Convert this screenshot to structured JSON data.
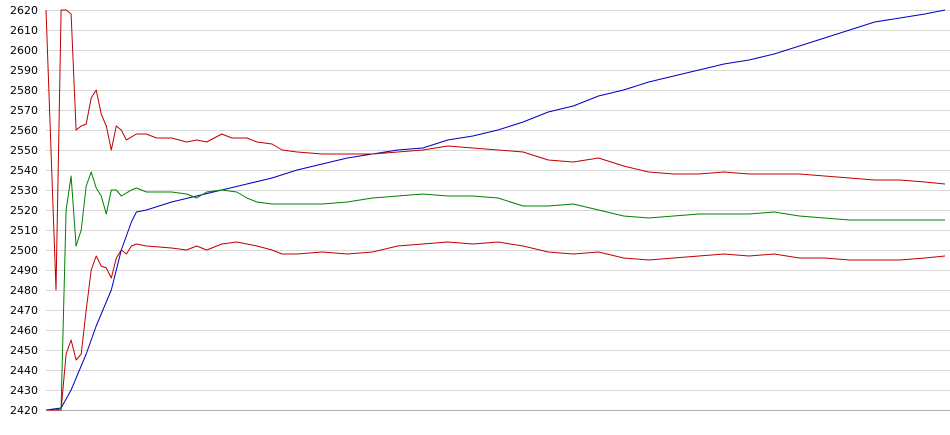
{
  "chart_data": {
    "type": "line",
    "title": "",
    "xlabel": "",
    "ylabel": "",
    "ylim": [
      2420,
      2620
    ],
    "xlim": [
      0,
      179
    ],
    "yticks": [
      2420,
      2430,
      2440,
      2450,
      2460,
      2470,
      2480,
      2490,
      2500,
      2510,
      2520,
      2530,
      2540,
      2550,
      2560,
      2570,
      2580,
      2590,
      2600,
      2610,
      2620
    ],
    "grid": true,
    "legend": "none",
    "series": [
      {
        "color": "#0000c0",
        "points": [
          [
            0,
            2420
          ],
          [
            3,
            2421
          ],
          [
            5,
            2430
          ],
          [
            8,
            2448
          ],
          [
            10,
            2462
          ],
          [
            13,
            2480
          ],
          [
            15,
            2500
          ],
          [
            17,
            2514
          ],
          [
            18,
            2519
          ],
          [
            20,
            2520
          ],
          [
            25,
            2524
          ],
          [
            30,
            2527
          ],
          [
            35,
            2530
          ],
          [
            40,
            2533
          ],
          [
            45,
            2536
          ],
          [
            50,
            2540
          ],
          [
            55,
            2543
          ],
          [
            60,
            2546
          ],
          [
            65,
            2548
          ],
          [
            70,
            2550
          ],
          [
            75,
            2551
          ],
          [
            80,
            2555
          ],
          [
            85,
            2557
          ],
          [
            90,
            2560
          ],
          [
            95,
            2564
          ],
          [
            100,
            2569
          ],
          [
            105,
            2572
          ],
          [
            110,
            2577
          ],
          [
            115,
            2580
          ],
          [
            120,
            2584
          ],
          [
            125,
            2587
          ],
          [
            130,
            2590
          ],
          [
            135,
            2593
          ],
          [
            140,
            2595
          ],
          [
            145,
            2598
          ],
          [
            150,
            2602
          ],
          [
            155,
            2606
          ],
          [
            160,
            2610
          ],
          [
            165,
            2614
          ],
          [
            170,
            2616
          ],
          [
            175,
            2618
          ],
          [
            179,
            2620
          ]
        ]
      },
      {
        "color": "#c00000",
        "points": [
          [
            0,
            2620
          ],
          [
            1,
            2550
          ],
          [
            2,
            2480
          ],
          [
            3,
            2620
          ],
          [
            4,
            2620
          ],
          [
            5,
            2618
          ],
          [
            6,
            2560
          ],
          [
            7,
            2562
          ],
          [
            8,
            2563
          ],
          [
            9,
            2576
          ],
          [
            10,
            2580
          ],
          [
            11,
            2568
          ],
          [
            12,
            2562
          ],
          [
            13,
            2550
          ],
          [
            14,
            2562
          ],
          [
            15,
            2560
          ],
          [
            16,
            2555
          ],
          [
            18,
            2558
          ],
          [
            20,
            2558
          ],
          [
            22,
            2556
          ],
          [
            25,
            2556
          ],
          [
            28,
            2554
          ],
          [
            30,
            2555
          ],
          [
            32,
            2554
          ],
          [
            35,
            2558
          ],
          [
            37,
            2556
          ],
          [
            40,
            2556
          ],
          [
            42,
            2554
          ],
          [
            45,
            2553
          ],
          [
            47,
            2550
          ],
          [
            50,
            2549
          ],
          [
            55,
            2548
          ],
          [
            60,
            2548
          ],
          [
            65,
            2548
          ],
          [
            70,
            2549
          ],
          [
            75,
            2550
          ],
          [
            80,
            2552
          ],
          [
            85,
            2551
          ],
          [
            90,
            2550
          ],
          [
            95,
            2549
          ],
          [
            100,
            2545
          ],
          [
            105,
            2544
          ],
          [
            110,
            2546
          ],
          [
            115,
            2542
          ],
          [
            120,
            2539
          ],
          [
            125,
            2538
          ],
          [
            130,
            2538
          ],
          [
            135,
            2539
          ],
          [
            140,
            2538
          ],
          [
            145,
            2538
          ],
          [
            150,
            2538
          ],
          [
            155,
            2537
          ],
          [
            160,
            2536
          ],
          [
            165,
            2535
          ],
          [
            170,
            2535
          ],
          [
            175,
            2534
          ],
          [
            179,
            2533
          ]
        ]
      },
      {
        "color": "#008000",
        "points": [
          [
            0,
            2420
          ],
          [
            2,
            2420
          ],
          [
            3,
            2421
          ],
          [
            4,
            2520
          ],
          [
            5,
            2537
          ],
          [
            6,
            2502
          ],
          [
            7,
            2510
          ],
          [
            8,
            2532
          ],
          [
            9,
            2539
          ],
          [
            10,
            2531
          ],
          [
            11,
            2527
          ],
          [
            12,
            2518
          ],
          [
            13,
            2530
          ],
          [
            14,
            2530
          ],
          [
            15,
            2527
          ],
          [
            17,
            2530
          ],
          [
            18,
            2531
          ],
          [
            20,
            2529
          ],
          [
            25,
            2529
          ],
          [
            28,
            2528
          ],
          [
            30,
            2526
          ],
          [
            32,
            2529
          ],
          [
            35,
            2530
          ],
          [
            38,
            2529
          ],
          [
            40,
            2526
          ],
          [
            42,
            2524
          ],
          [
            45,
            2523
          ],
          [
            50,
            2523
          ],
          [
            55,
            2523
          ],
          [
            60,
            2524
          ],
          [
            65,
            2526
          ],
          [
            70,
            2527
          ],
          [
            75,
            2528
          ],
          [
            80,
            2527
          ],
          [
            85,
            2527
          ],
          [
            90,
            2526
          ],
          [
            95,
            2522
          ],
          [
            100,
            2522
          ],
          [
            105,
            2523
          ],
          [
            110,
            2520
          ],
          [
            115,
            2517
          ],
          [
            120,
            2516
          ],
          [
            125,
            2517
          ],
          [
            130,
            2518
          ],
          [
            135,
            2518
          ],
          [
            140,
            2518
          ],
          [
            145,
            2519
          ],
          [
            150,
            2517
          ],
          [
            155,
            2516
          ],
          [
            160,
            2515
          ],
          [
            165,
            2515
          ],
          [
            170,
            2515
          ],
          [
            179,
            2515
          ]
        ]
      },
      {
        "color": "#c00000",
        "points": [
          [
            0,
            2420
          ],
          [
            3,
            2420
          ],
          [
            4,
            2448
          ],
          [
            5,
            2455
          ],
          [
            6,
            2445
          ],
          [
            7,
            2448
          ],
          [
            8,
            2470
          ],
          [
            9,
            2490
          ],
          [
            10,
            2497
          ],
          [
            11,
            2492
          ],
          [
            12,
            2491
          ],
          [
            13,
            2486
          ],
          [
            14,
            2496
          ],
          [
            15,
            2500
          ],
          [
            16,
            2498
          ],
          [
            17,
            2502
          ],
          [
            18,
            2503
          ],
          [
            20,
            2502
          ],
          [
            25,
            2501
          ],
          [
            28,
            2500
          ],
          [
            30,
            2502
          ],
          [
            32,
            2500
          ],
          [
            35,
            2503
          ],
          [
            38,
            2504
          ],
          [
            40,
            2503
          ],
          [
            42,
            2502
          ],
          [
            45,
            2500
          ],
          [
            47,
            2498
          ],
          [
            50,
            2498
          ],
          [
            55,
            2499
          ],
          [
            60,
            2498
          ],
          [
            65,
            2499
          ],
          [
            70,
            2502
          ],
          [
            75,
            2503
          ],
          [
            80,
            2504
          ],
          [
            85,
            2503
          ],
          [
            90,
            2504
          ],
          [
            95,
            2502
          ],
          [
            100,
            2499
          ],
          [
            105,
            2498
          ],
          [
            110,
            2499
          ],
          [
            115,
            2496
          ],
          [
            120,
            2495
          ],
          [
            125,
            2496
          ],
          [
            130,
            2497
          ],
          [
            135,
            2498
          ],
          [
            140,
            2497
          ],
          [
            145,
            2498
          ],
          [
            150,
            2496
          ],
          [
            155,
            2496
          ],
          [
            160,
            2495
          ],
          [
            165,
            2495
          ],
          [
            170,
            2495
          ],
          [
            175,
            2496
          ],
          [
            179,
            2497
          ]
        ]
      }
    ]
  }
}
